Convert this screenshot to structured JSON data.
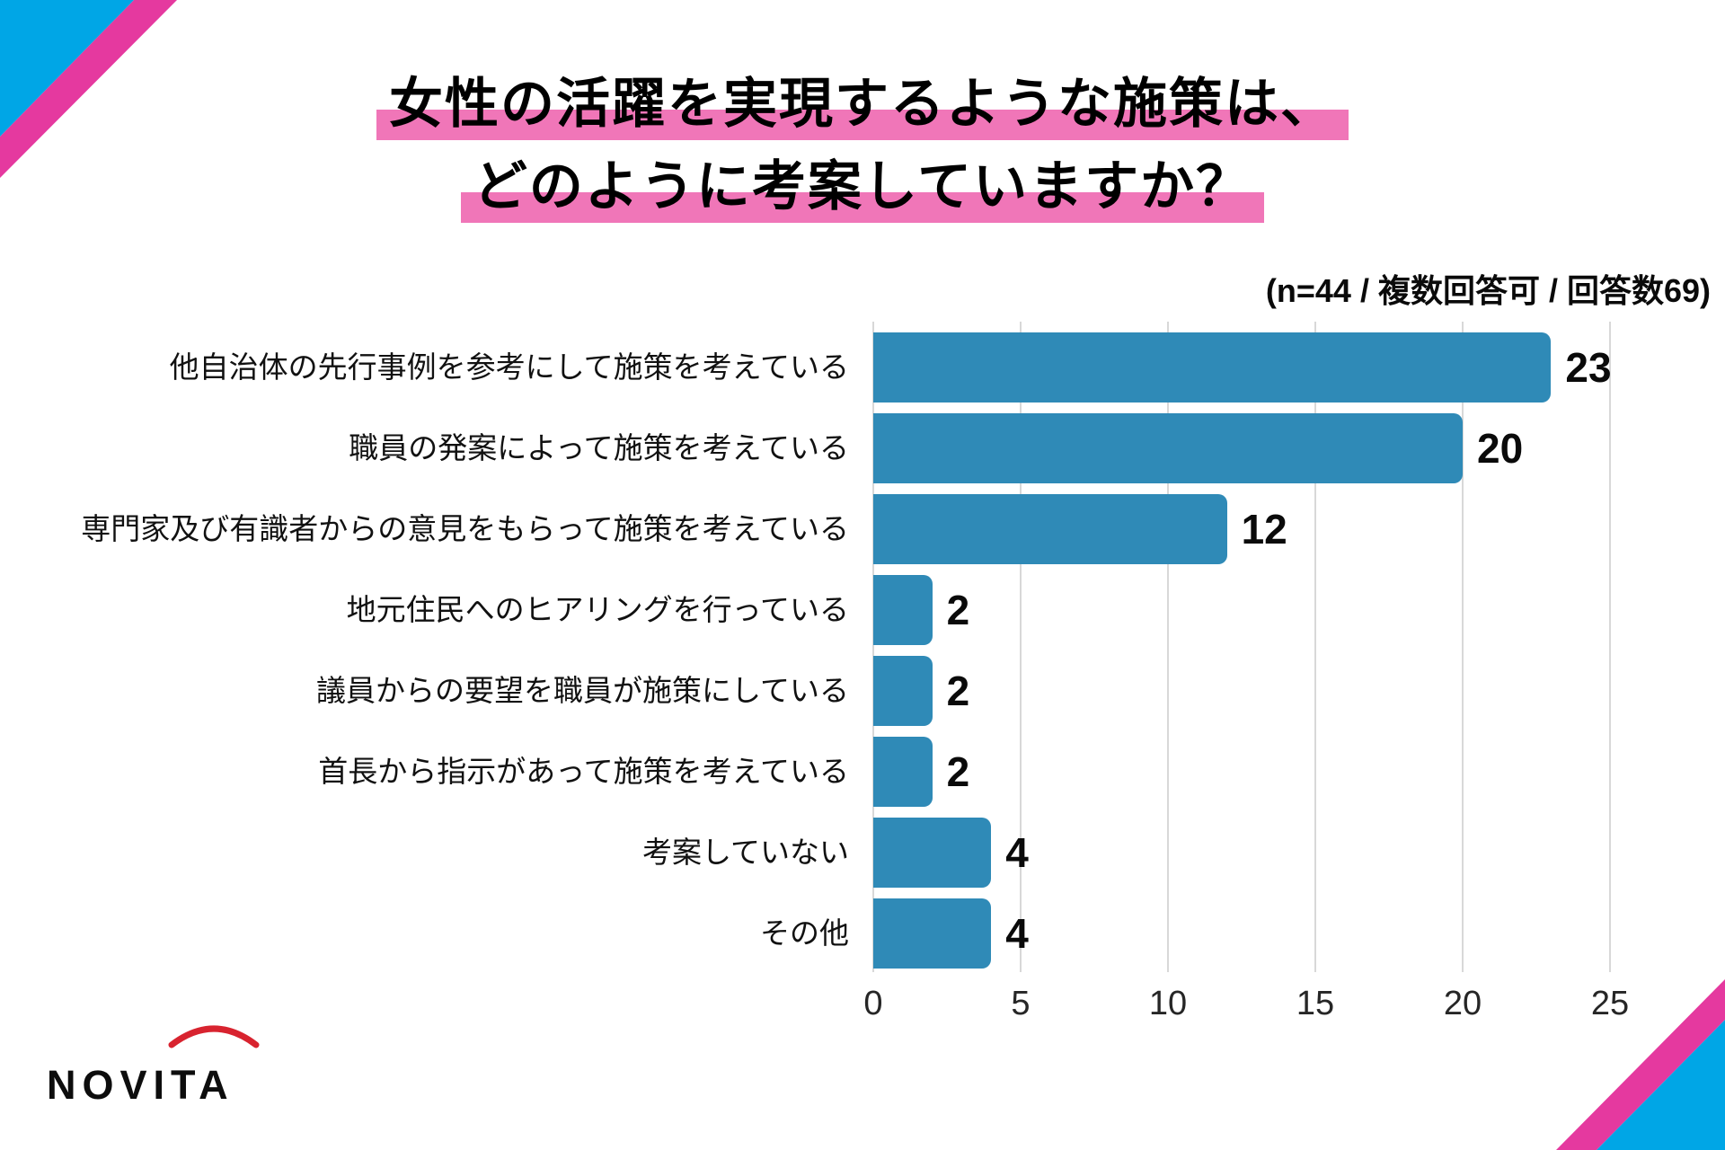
{
  "title": {
    "line1": "女性の活躍を実現するような施策は、",
    "line2": "どのように考案していますか？"
  },
  "subtitle": "(n=44 / 複数回答可 / 回答数69)",
  "logo": {
    "text": "NOVITA"
  },
  "colors": {
    "bar": "#2f8ab7",
    "title_highlight": "#f076b8",
    "corner_pink": "#e5399f",
    "corner_cyan": "#00a6e6",
    "gridline": "#d8d8d8",
    "logo_arc": "#d8232f"
  },
  "chart_data": {
    "type": "bar",
    "orientation": "horizontal",
    "title": "女性の活躍を実現するような施策は、どのように考案していますか？",
    "note": "(n=44 / 複数回答可 / 回答数69)",
    "categories": [
      "他自治体の先行事例を参考にして施策を考えている",
      "職員の発案によって施策を考えている",
      "専門家及び有識者からの意見をもらって施策を考えている",
      "地元住民へのヒアリングを行っている",
      "議員からの要望を職員が施策にしている",
      "首長から指示があって施策を考えている",
      "考案していない",
      "その他"
    ],
    "values": [
      23,
      20,
      12,
      2,
      2,
      2,
      4,
      4
    ],
    "xlabel": "",
    "ylabel": "",
    "xlim": [
      0,
      25
    ],
    "xticks": [
      0,
      5,
      10,
      15,
      20,
      25
    ],
    "grid": true,
    "value_labels": true,
    "legend": false
  }
}
